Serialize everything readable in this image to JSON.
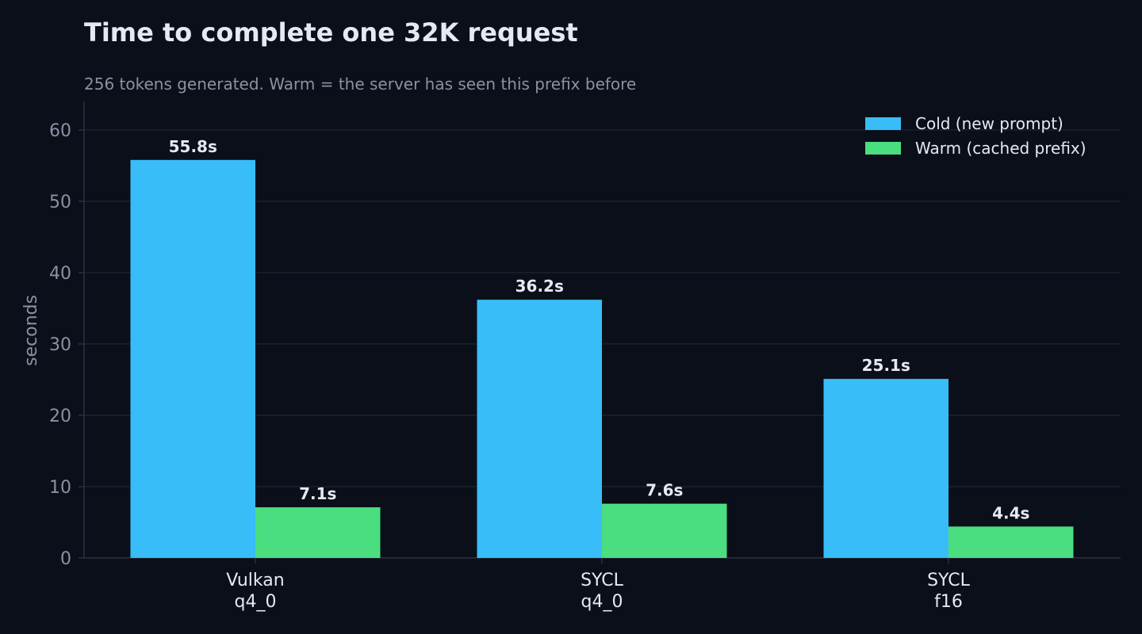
{
  "chart_data": {
    "type": "bar",
    "title": "Time to complete one 32K request",
    "subtitle": "256 tokens generated. Warm = the server has seen this prefix before",
    "ylabel": "seconds",
    "ylim": [
      0,
      64
    ],
    "yticks": [
      0,
      10,
      20,
      30,
      40,
      50,
      60
    ],
    "categories": [
      [
        "Vulkan",
        "q4_0"
      ],
      [
        "SYCL",
        "q4_0"
      ],
      [
        "SYCL",
        "f16"
      ]
    ],
    "series": [
      {
        "name": "Cold (new prompt)",
        "color": "#38bdf8",
        "values": [
          55.8,
          36.2,
          25.1
        ],
        "labels": [
          "55.8s",
          "36.2s",
          "25.1s"
        ]
      },
      {
        "name": "Warm (cached prefix)",
        "color": "#4ade80",
        "values": [
          7.1,
          7.6,
          4.4
        ],
        "labels": [
          "7.1s",
          "7.6s",
          "4.4s"
        ]
      }
    ],
    "grid": true,
    "legend": "top-right"
  }
}
